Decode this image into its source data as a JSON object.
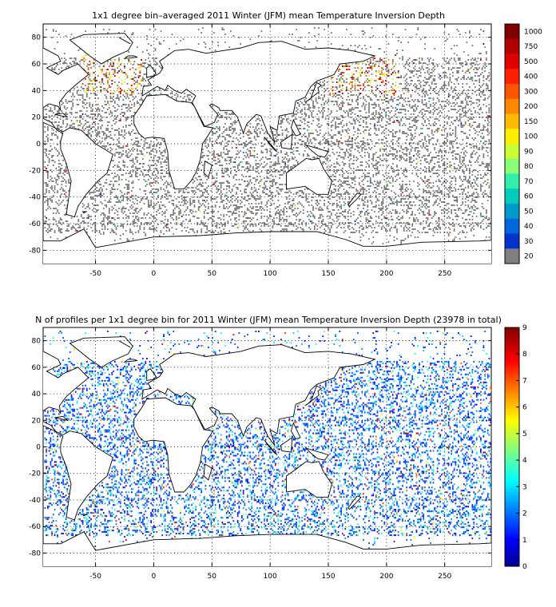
{
  "chart_data": [
    {
      "type": "heatmap",
      "title": "1x1 degree bin–averaged 2011 Winter (JFM) mean Temperature Inversion Depth",
      "x_ticks": [
        -50,
        0,
        50,
        100,
        150,
        200,
        250
      ],
      "y_ticks": [
        80,
        60,
        40,
        20,
        0,
        -20,
        -40,
        -60,
        -80
      ],
      "xlim": [
        -95,
        290
      ],
      "ylim": [
        -90,
        90
      ],
      "grid": true,
      "colorbar": {
        "labels": [
          "1000",
          "750",
          "500",
          "400",
          "300",
          "200",
          "150",
          "100",
          "90",
          "80",
          "70",
          "60",
          "50",
          "40",
          "30",
          "20"
        ],
        "colors": [
          "#800000",
          "#b00000",
          "#e00000",
          "#ff2000",
          "#ff5500",
          "#ff8800",
          "#ffbb00",
          "#ffee00",
          "#ccff33",
          "#88ff77",
          "#33eeaa",
          "#00ccbb",
          "#0099cc",
          "#0066dd",
          "#0033cc",
          "#808080"
        ]
      }
    },
    {
      "type": "heatmap",
      "title": "N of profiles per 1x1 degree bin for 2011 Winter (JFM) mean Temperature Inversion Depth  (23978 in total)",
      "x_ticks": [
        -50,
        0,
        50,
        100,
        150,
        200,
        250
      ],
      "y_ticks": [
        80,
        60,
        40,
        20,
        0,
        -20,
        -40,
        -60,
        -80
      ],
      "xlim": [
        -95,
        290
      ],
      "ylim": [
        -90,
        90
      ],
      "grid": true,
      "colorbar": {
        "range": [
          0,
          9
        ],
        "ticks": [
          "0",
          "1",
          "2",
          "3",
          "4",
          "5",
          "6",
          "7",
          "8",
          "9"
        ],
        "colormap": "jet"
      }
    }
  ]
}
